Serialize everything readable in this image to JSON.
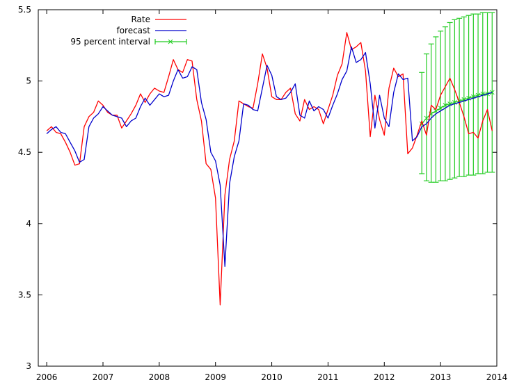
{
  "chart_data": {
    "type": "line",
    "title": "",
    "xlabel": "",
    "ylabel": "",
    "xlim": [
      2005.85,
      2014.0
    ],
    "ylim": [
      3.0,
      5.5
    ],
    "x_ticks": [
      2006,
      2007,
      2008,
      2009,
      2010,
      2011,
      2012,
      2013,
      2014
    ],
    "x_tick_labels": [
      "2006",
      "2007",
      "2008",
      "2009",
      "2010",
      "2011",
      "2012",
      "2013",
      "2014"
    ],
    "y_ticks": [
      3,
      3.5,
      4,
      4.5,
      5,
      5.5
    ],
    "y_tick_labels": [
      "3",
      "3.5",
      "4",
      "4.5",
      "5",
      "5.5"
    ],
    "grid": false,
    "legend_position": "top-left",
    "colors": {
      "rate": "#ff0000",
      "forecast": "#0000cc",
      "interval": "#22cc22"
    },
    "legend": [
      {
        "label": "Rate",
        "style": "line",
        "color": "#ff0000"
      },
      {
        "label": "forecast",
        "style": "line",
        "color": "#0000cc"
      },
      {
        "label": "95 percent interval",
        "style": "errorbar",
        "color": "#22cc22"
      }
    ],
    "series": [
      {
        "name": "Rate",
        "color": "#ff0000",
        "x": [
          2006.0,
          2006.0833,
          2006.1667,
          2006.25,
          2006.3333,
          2006.4167,
          2006.5,
          2006.5833,
          2006.6667,
          2006.75,
          2006.8333,
          2006.9167,
          2007.0,
          2007.0833,
          2007.1667,
          2007.25,
          2007.3333,
          2007.4167,
          2007.5,
          2007.5833,
          2007.6667,
          2007.75,
          2007.8333,
          2007.9167,
          2008.0,
          2008.0833,
          2008.1667,
          2008.25,
          2008.3333,
          2008.4167,
          2008.5,
          2008.5833,
          2008.6667,
          2008.75,
          2008.8333,
          2008.9167,
          2009.0,
          2009.0833,
          2009.1667,
          2009.25,
          2009.3333,
          2009.4167,
          2009.5,
          2009.5833,
          2009.6667,
          2009.75,
          2009.8333,
          2009.9167,
          2010.0,
          2010.0833,
          2010.1667,
          2010.25,
          2010.3333,
          2010.4167,
          2010.5,
          2010.5833,
          2010.6667,
          2010.75,
          2010.8333,
          2010.9167,
          2011.0,
          2011.0833,
          2011.1667,
          2011.25,
          2011.3333,
          2011.4167,
          2011.5,
          2011.5833,
          2011.6667,
          2011.75,
          2011.8333,
          2011.9167,
          2012.0,
          2012.0833,
          2012.1667,
          2012.25,
          2012.3333,
          2012.4167,
          2012.5,
          2012.5833,
          2012.6667,
          2012.75,
          2012.8333,
          2012.9167,
          2013.0,
          2013.0833,
          2013.1667,
          2013.25,
          2013.3333,
          2013.4167,
          2013.5,
          2013.5833,
          2013.6667,
          2013.75,
          2013.8333,
          2013.9167
        ],
        "values": [
          4.65,
          4.68,
          4.64,
          4.63,
          4.57,
          4.5,
          4.41,
          4.42,
          4.68,
          4.75,
          4.78,
          4.86,
          4.83,
          4.78,
          4.76,
          4.76,
          4.67,
          4.72,
          4.77,
          4.83,
          4.91,
          4.85,
          4.91,
          4.95,
          4.93,
          4.92,
          5.03,
          5.15,
          5.08,
          5.06,
          5.15,
          5.14,
          4.87,
          4.72,
          4.42,
          4.38,
          4.18,
          3.43,
          4.2,
          4.45,
          4.58,
          4.86,
          4.84,
          4.82,
          4.81,
          4.98,
          5.19,
          5.09,
          4.89,
          4.87,
          4.87,
          4.92,
          4.95,
          4.77,
          4.72,
          4.87,
          4.8,
          4.82,
          4.8,
          4.7,
          4.8,
          4.9,
          5.04,
          5.12,
          5.34,
          5.22,
          5.24,
          5.27,
          5.07,
          4.61,
          4.9,
          4.73,
          4.62,
          4.95,
          5.09,
          5.03,
          5.05,
          4.49,
          4.53,
          4.62,
          4.72,
          4.62,
          4.83,
          4.8,
          4.9,
          4.96,
          5.02,
          4.94,
          4.85,
          4.75,
          4.63,
          4.64,
          4.6,
          4.72,
          4.8,
          4.65
        ]
      },
      {
        "name": "forecast",
        "color": "#0000cc",
        "x": [
          2006.0,
          2006.0833,
          2006.1667,
          2006.25,
          2006.3333,
          2006.4167,
          2006.5,
          2006.5833,
          2006.6667,
          2006.75,
          2006.8333,
          2006.9167,
          2007.0,
          2007.0833,
          2007.1667,
          2007.25,
          2007.3333,
          2007.4167,
          2007.5,
          2007.5833,
          2007.6667,
          2007.75,
          2007.8333,
          2007.9167,
          2008.0,
          2008.0833,
          2008.1667,
          2008.25,
          2008.3333,
          2008.4167,
          2008.5,
          2008.5833,
          2008.6667,
          2008.75,
          2008.8333,
          2008.9167,
          2009.0,
          2009.0833,
          2009.1667,
          2009.25,
          2009.3333,
          2009.4167,
          2009.5,
          2009.5833,
          2009.6667,
          2009.75,
          2009.8333,
          2009.9167,
          2010.0,
          2010.0833,
          2010.1667,
          2010.25,
          2010.3333,
          2010.4167,
          2010.5,
          2010.5833,
          2010.6667,
          2010.75,
          2010.8333,
          2010.9167,
          2011.0,
          2011.0833,
          2011.1667,
          2011.25,
          2011.3333,
          2011.4167,
          2011.5,
          2011.5833,
          2011.6667,
          2011.75,
          2011.8333,
          2011.9167,
          2012.0,
          2012.0833,
          2012.1667,
          2012.25,
          2012.3333,
          2012.4167,
          2012.5,
          2012.5833,
          2012.6667,
          2012.75,
          2012.8333,
          2012.9167,
          2013.0,
          2013.0833,
          2013.1667,
          2013.25,
          2013.3333,
          2013.4167,
          2013.5,
          2013.5833,
          2013.6667,
          2013.75,
          2013.8333,
          2013.9167
        ],
        "values": [
          4.63,
          4.66,
          4.68,
          4.64,
          4.63,
          4.57,
          4.51,
          4.43,
          4.45,
          4.68,
          4.74,
          4.77,
          4.82,
          4.79,
          4.76,
          4.75,
          4.74,
          4.68,
          4.72,
          4.74,
          4.82,
          4.88,
          4.83,
          4.87,
          4.91,
          4.89,
          4.9,
          5.0,
          5.08,
          5.02,
          5.03,
          5.1,
          5.08,
          4.85,
          4.73,
          4.5,
          4.44,
          4.27,
          3.7,
          4.28,
          4.47,
          4.58,
          4.84,
          4.83,
          4.8,
          4.79,
          4.95,
          5.11,
          5.04,
          4.89,
          4.87,
          4.88,
          4.92,
          4.98,
          4.76,
          4.74,
          4.86,
          4.79,
          4.82,
          4.8,
          4.74,
          4.83,
          4.91,
          5.01,
          5.07,
          5.24,
          5.13,
          5.15,
          5.2,
          4.98,
          4.67,
          4.9,
          4.74,
          4.68,
          4.92,
          5.05,
          5.01,
          5.02,
          4.58,
          4.61,
          4.68,
          4.7,
          4.74,
          4.77,
          4.79,
          4.81,
          4.83,
          4.84,
          4.85,
          4.86,
          4.87,
          4.88,
          4.89,
          4.9,
          4.91,
          4.92
        ]
      },
      {
        "name": "95 percent interval",
        "color": "#22cc22",
        "x": [
          2012.6667,
          2012.75,
          2012.8333,
          2012.9167,
          2013.0,
          2013.0833,
          2013.1667,
          2013.25,
          2013.3333,
          2013.4167,
          2013.5,
          2013.5833,
          2013.6667,
          2013.75,
          2013.8333,
          2013.9167
        ],
        "center": [
          4.7,
          4.74,
          4.77,
          4.79,
          4.81,
          4.83,
          4.84,
          4.85,
          4.86,
          4.87,
          4.88,
          4.89,
          4.9,
          4.91,
          4.91,
          4.92
        ],
        "lower": [
          4.35,
          4.3,
          4.29,
          4.29,
          4.3,
          4.3,
          4.31,
          4.32,
          4.33,
          4.33,
          4.34,
          4.34,
          4.35,
          4.35,
          4.36,
          4.36
        ],
        "upper": [
          5.06,
          5.19,
          5.26,
          5.31,
          5.35,
          5.38,
          5.41,
          5.43,
          5.44,
          5.45,
          5.46,
          5.47,
          5.47,
          5.48,
          5.48,
          5.48
        ]
      }
    ]
  }
}
